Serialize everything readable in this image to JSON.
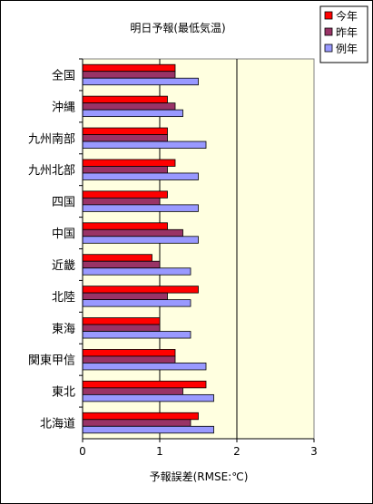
{
  "chart_data": {
    "type": "bar",
    "orientation": "horizontal",
    "title": "明日予報(最低気温)",
    "xlabel": "予報誤差(RMSE:℃)",
    "ylabel": "",
    "xlim": [
      0,
      3
    ],
    "xticks": [
      "0",
      "1",
      "2",
      "3"
    ],
    "grid": "vertical",
    "legend_position": "top-right",
    "plot_background": "#ffffe0",
    "categories": [
      "全国",
      "沖縄",
      "九州南部",
      "九州北部",
      "四国",
      "中国",
      "近畿",
      "北陸",
      "東海",
      "関東甲信",
      "東北",
      "北海道"
    ],
    "series": [
      {
        "name": "今年",
        "color": "#ff0000",
        "values": [
          1.2,
          1.1,
          1.1,
          1.2,
          1.1,
          1.1,
          0.9,
          1.5,
          1.0,
          1.2,
          1.6,
          1.5
        ]
      },
      {
        "name": "昨年",
        "color": "#993366",
        "values": [
          1.2,
          1.2,
          1.1,
          1.1,
          1.0,
          1.3,
          1.0,
          1.1,
          1.0,
          1.2,
          1.3,
          1.4
        ]
      },
      {
        "name": "例年",
        "color": "#9999ff",
        "values": [
          1.5,
          1.3,
          1.6,
          1.5,
          1.5,
          1.5,
          1.4,
          1.4,
          1.4,
          1.6,
          1.7,
          1.7
        ]
      }
    ]
  }
}
